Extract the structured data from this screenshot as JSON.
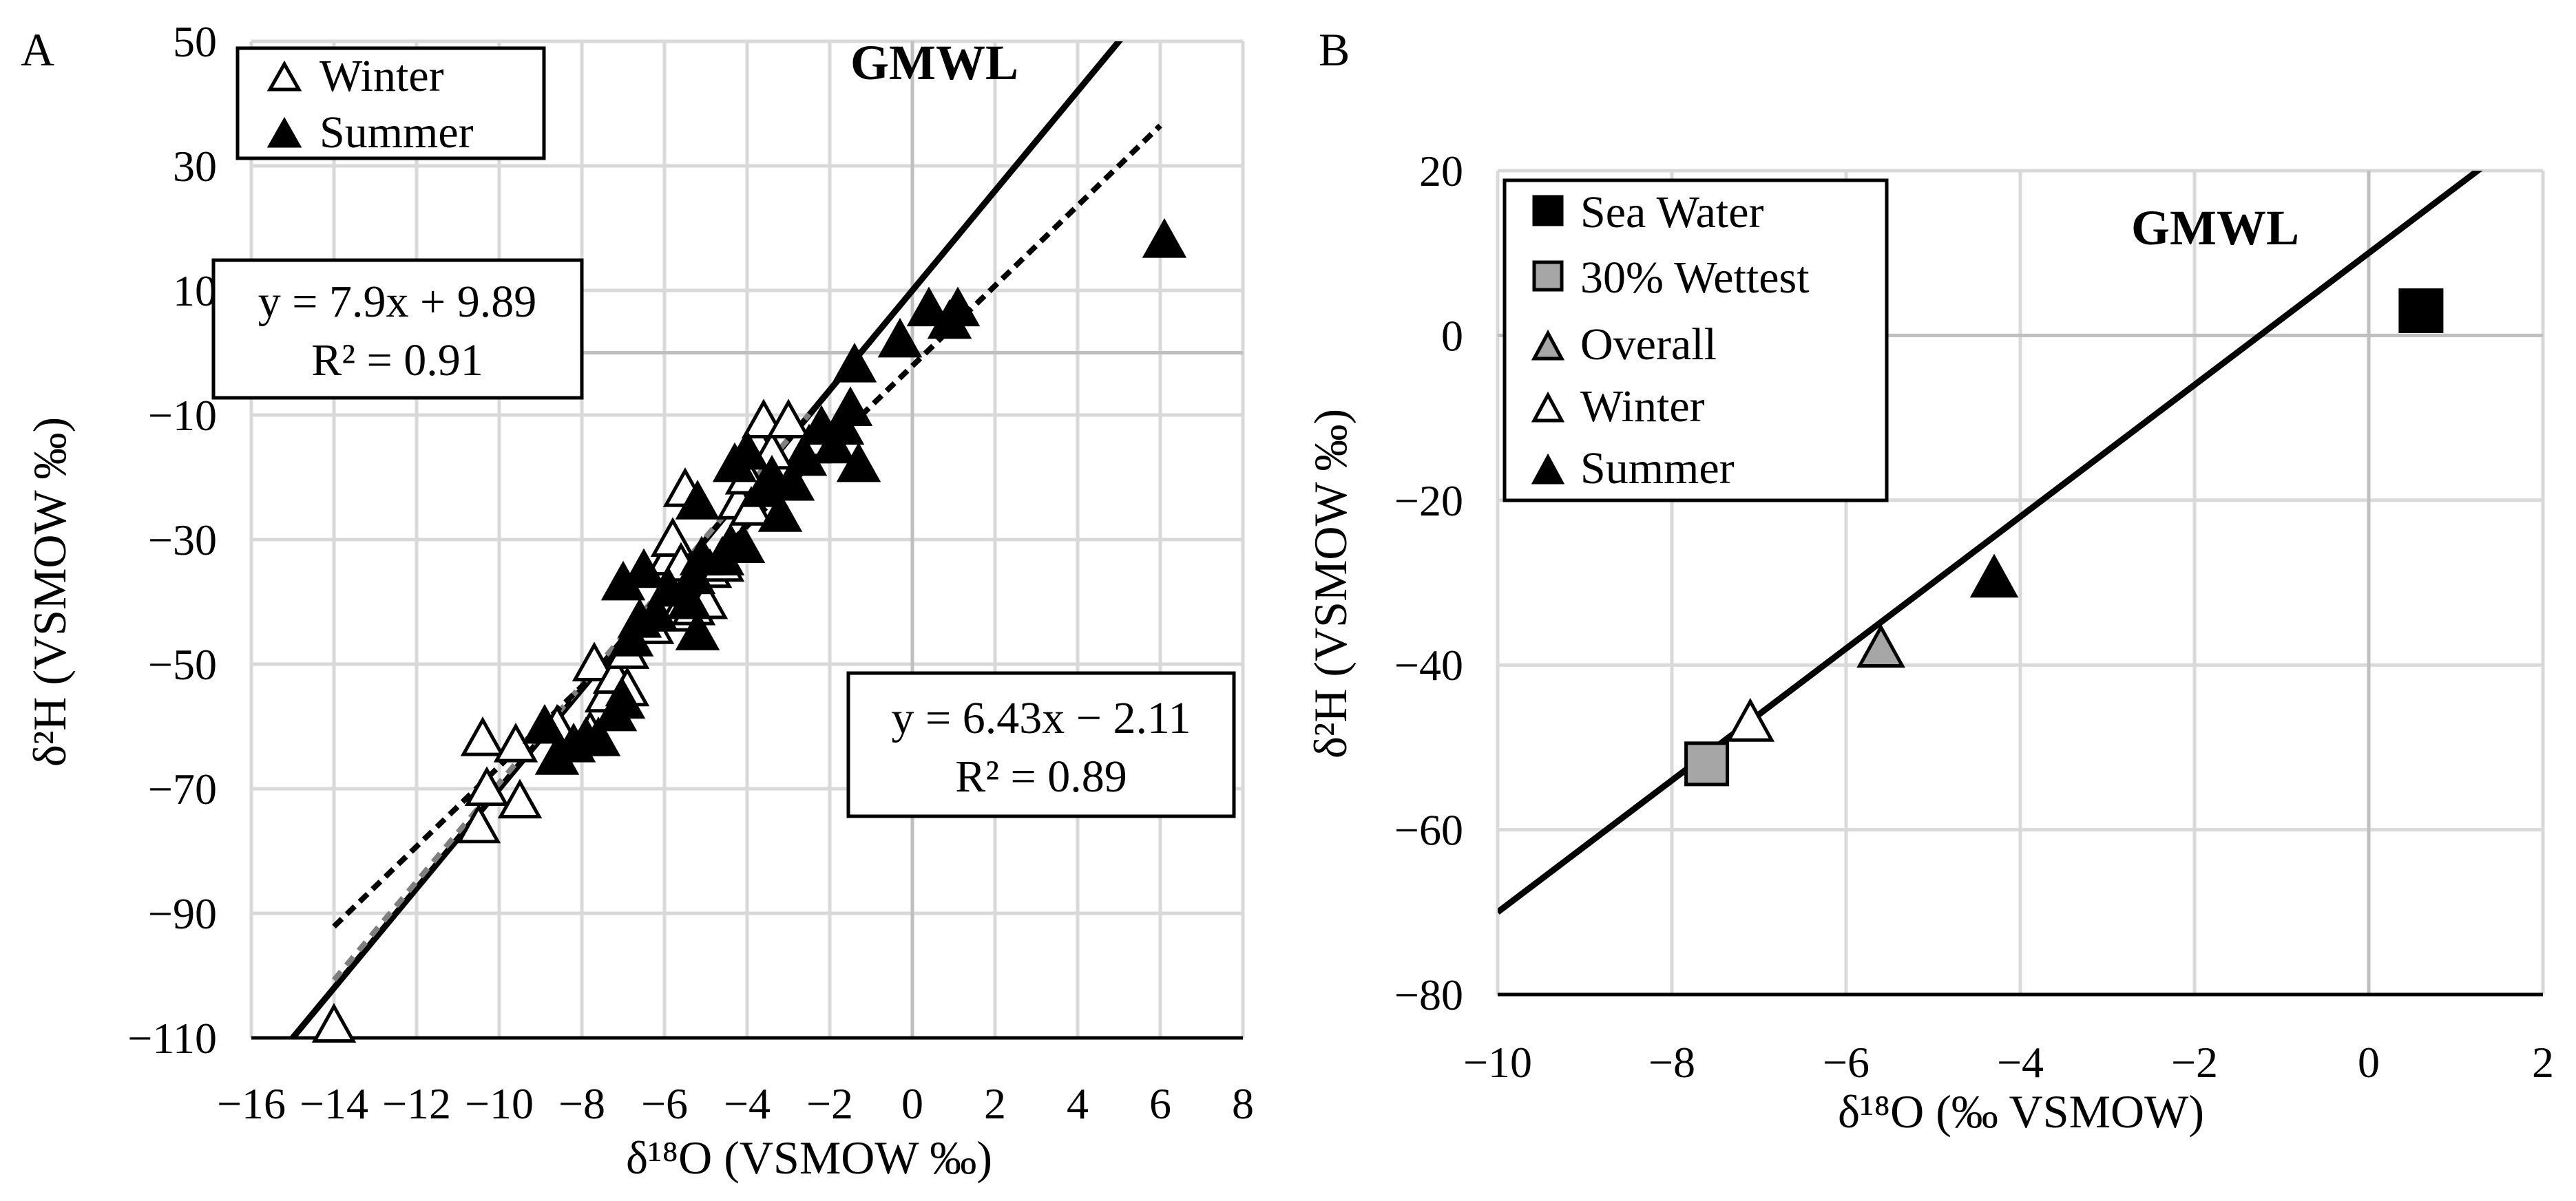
{
  "chart_data": [
    {
      "type": "scatter",
      "panel_label": "A",
      "xlabel": "δ¹⁸O (VSMOW ‰)",
      "ylabel": "δ²H (VSMOW ‰)",
      "xlim": [
        -16,
        8
      ],
      "ylim": [
        -110,
        50
      ],
      "xticks": [
        -16,
        -14,
        -12,
        -10,
        -8,
        -6,
        -4,
        -2,
        0,
        2,
        4,
        6,
        8
      ],
      "yticks": [
        -110,
        -90,
        -70,
        -50,
        -30,
        -10,
        10,
        30,
        50
      ],
      "xtick_labels": [
        "−16",
        "−14",
        "−12",
        "−10",
        "−8",
        "−6",
        "−4",
        "−2",
        "0",
        "2",
        "4",
        "6",
        "8"
      ],
      "ytick_labels": [
        "−110",
        "−90",
        "−70",
        "−50",
        "−30",
        "−10",
        "10",
        "30",
        "50"
      ],
      "grid": true,
      "gmwl_label": "GMWL",
      "legend": [
        {
          "label": "Winter",
          "marker": "open-triangle"
        },
        {
          "label": "Summer",
          "marker": "filled-triangle"
        }
      ],
      "lines": [
        {
          "name": "GMWL",
          "slope": 8,
          "intercept": 10,
          "style": "solid"
        },
        {
          "name": "Winter fit",
          "slope": 7.9,
          "intercept": 9.89,
          "x_range": [
            -14,
            -2.5
          ],
          "style": "dashed-gray"
        },
        {
          "name": "Summer fit",
          "slope": 6.43,
          "intercept": -2.11,
          "x_range": [
            -14,
            6
          ],
          "style": "dashed-black"
        }
      ],
      "equations": [
        {
          "line1": "y = 7.9x + 9.89",
          "line2": "R² = 0.91",
          "position": "left"
        },
        {
          "line1": "y = 6.43x − 2.11",
          "line2": "R² = 0.89",
          "position": "bottom-right"
        }
      ],
      "series": [
        {
          "name": "Winter",
          "marker": "open-triangle",
          "points": [
            [
              -14,
              -108
            ],
            [
              -10.5,
              -76
            ],
            [
              -10.3,
              -70
            ],
            [
              -10.4,
              -62
            ],
            [
              -9.5,
              -72
            ],
            [
              -9.6,
              -63
            ],
            [
              -8.6,
              -60
            ],
            [
              -7.8,
              -61
            ],
            [
              -7.7,
              -50
            ],
            [
              -7.4,
              -55
            ],
            [
              -7.2,
              -52
            ],
            [
              -6.9,
              -54
            ],
            [
              -6.9,
              -48
            ],
            [
              -6.6,
              -44
            ],
            [
              -6.3,
              -44
            ],
            [
              -6.0,
              -40
            ],
            [
              -5.9,
              -33
            ],
            [
              -5.8,
              -30
            ],
            [
              -5.6,
              -34
            ],
            [
              -5.7,
              -42
            ],
            [
              -5.3,
              -41
            ],
            [
              -5.5,
              -22
            ],
            [
              -5.0,
              -40
            ],
            [
              -4.9,
              -35
            ],
            [
              -4.6,
              -34
            ],
            [
              -4.2,
              -24
            ],
            [
              -4.0,
              -20
            ],
            [
              -3.8,
              -14
            ],
            [
              -3.6,
              -11
            ],
            [
              -3.4,
              -16
            ],
            [
              -3.0,
              -11
            ],
            [
              -2.5,
              -15
            ],
            [
              -2.2,
              -14
            ],
            [
              -3.9,
              -25
            ]
          ]
        },
        {
          "name": "Summer",
          "marker": "filled-triangle",
          "points": [
            [
              -8.9,
              -60
            ],
            [
              -8.6,
              -65
            ],
            [
              -8.2,
              -63
            ],
            [
              -7.9,
              -62
            ],
            [
              -7.6,
              -62
            ],
            [
              -7.2,
              -58
            ],
            [
              -7.0,
              -56
            ],
            [
              -6.8,
              -46
            ],
            [
              -6.6,
              -43
            ],
            [
              -7.0,
              -37
            ],
            [
              -6.5,
              -35
            ],
            [
              -6.2,
              -42
            ],
            [
              -5.9,
              -38
            ],
            [
              -5.4,
              -40
            ],
            [
              -5.3,
              -36
            ],
            [
              -5.2,
              -45
            ],
            [
              -5.1,
              -33
            ],
            [
              -5.2,
              -24
            ],
            [
              -4.6,
              -33
            ],
            [
              -4.4,
              -31
            ],
            [
              -4.1,
              -31
            ],
            [
              -4.3,
              -18
            ],
            [
              -4.0,
              -16
            ],
            [
              -3.6,
              -22
            ],
            [
              -3.4,
              -20
            ],
            [
              -3.2,
              -26
            ],
            [
              -2.9,
              -21
            ],
            [
              -2.6,
              -17
            ],
            [
              -2.2,
              -12
            ],
            [
              -1.9,
              -15
            ],
            [
              -1.7,
              -12
            ],
            [
              -1.5,
              -9
            ],
            [
              -1.4,
              -2
            ],
            [
              -1.3,
              -18
            ],
            [
              -0.3,
              2
            ],
            [
              0.4,
              7
            ],
            [
              0.9,
              5
            ],
            [
              1.1,
              7
            ],
            [
              6.1,
              18
            ]
          ]
        }
      ]
    },
    {
      "type": "scatter",
      "panel_label": "B",
      "xlabel": "δ¹⁸O (‰ VSMOW)",
      "ylabel": "δ²H (VSMOW ‰)",
      "xlim": [
        -10,
        2
      ],
      "ylim": [
        -80,
        20
      ],
      "xticks": [
        -10,
        -8,
        -6,
        -4,
        -2,
        0,
        2
      ],
      "yticks": [
        -80,
        -60,
        -40,
        -20,
        0,
        20
      ],
      "xtick_labels": [
        "−10",
        "−8",
        "−6",
        "−4",
        "−2",
        "0",
        "2"
      ],
      "ytick_labels": [
        "−80",
        "−60",
        "−40",
        "−20",
        "0",
        "20"
      ],
      "grid": true,
      "gmwl_label": "GMWL",
      "legend": [
        {
          "label": "Sea Water",
          "marker": "filled-square"
        },
        {
          "label": "30% Wettest",
          "marker": "gray-square"
        },
        {
          "label": "Overall",
          "marker": "gray-triangle"
        },
        {
          "label": "Winter",
          "marker": "open-triangle"
        },
        {
          "label": "Summer",
          "marker": "filled-triangle"
        }
      ],
      "lines": [
        {
          "name": "GMWL",
          "slope": 8,
          "intercept": 10,
          "style": "solid"
        }
      ],
      "series": [
        {
          "name": "Sea Water",
          "marker": "filled-square",
          "points": [
            [
              0.6,
              3
            ]
          ]
        },
        {
          "name": "30% Wettest",
          "marker": "gray-square",
          "points": [
            [
              -7.6,
              -52
            ]
          ]
        },
        {
          "name": "Overall",
          "marker": "gray-triangle",
          "points": [
            [
              -5.6,
              -38
            ]
          ]
        },
        {
          "name": "Winter",
          "marker": "open-triangle",
          "points": [
            [
              -7.1,
              -47
            ]
          ]
        },
        {
          "name": "Summer",
          "marker": "filled-triangle",
          "points": [
            [
              -4.3,
              -29.5
            ]
          ]
        }
      ]
    }
  ]
}
